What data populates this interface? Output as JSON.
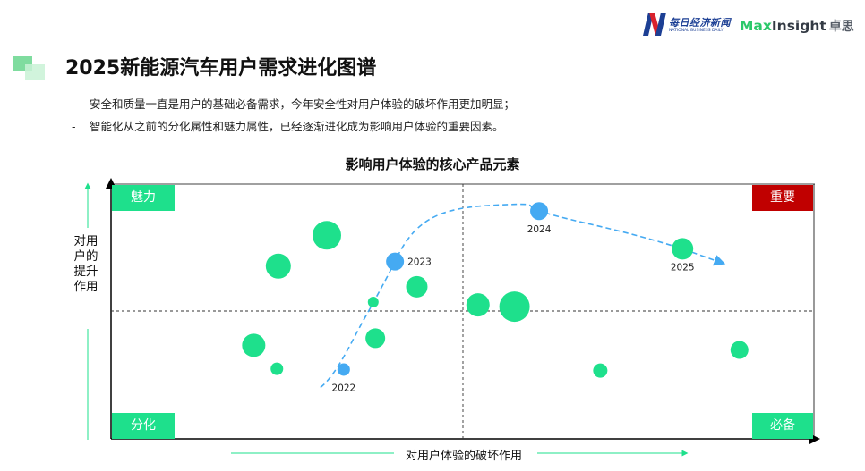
{
  "branding": {
    "nbd_cn": "每日经济新闻",
    "nbd_en": "NATIONAL BUSINESS DAILY",
    "maxinsight_max": "Max",
    "maxinsight_insight": "Insight",
    "maxinsight_cn": "卓思"
  },
  "page": {
    "title": "2025新能源汽车用户需求进化图谱",
    "bullets": [
      {
        "dash": "-",
        "text": "安全和质量一直是用户的基础必备需求，今年安全性对用户体验的破坏作用更加明显；"
      },
      {
        "dash": "-",
        "text": "智能化从之前的分化属性和魅力属性，已经逐渐进化成为影响用户体验的重要因素。"
      }
    ]
  },
  "colors": {
    "green": "#1ee08c",
    "blue": "#45aaf2",
    "important": "#c00000",
    "quadrant_green": "#1ee08c",
    "axis": "#000000"
  },
  "chart_data": {
    "type": "scatter",
    "title": "影响用户体验的核心产品元素",
    "xlabel": "对用户体验的破坏作用",
    "ylabel": "对用户的提升作用",
    "xlim": [
      0,
      100
    ],
    "ylim": [
      0,
      100
    ],
    "grid": false,
    "quadrant_labels": {
      "top_left": "魅力",
      "top_right": "重要",
      "bottom_left": "分化",
      "bottom_right": "必备"
    },
    "elements": [
      {
        "x": 30.7,
        "y": 79.9,
        "size": 16
      },
      {
        "x": 23.8,
        "y": 67.8,
        "size": 14
      },
      {
        "x": 43.5,
        "y": 59.7,
        "size": 12
      },
      {
        "x": 37.3,
        "y": 53.7,
        "size": 6
      },
      {
        "x": 57.4,
        "y": 51.9,
        "size": 17
      },
      {
        "x": 52.2,
        "y": 52.6,
        "size": 13
      },
      {
        "x": 20.3,
        "y": 36.7,
        "size": 13
      },
      {
        "x": 37.6,
        "y": 39.5,
        "size": 11
      },
      {
        "x": 23.6,
        "y": 27.5,
        "size": 7
      },
      {
        "x": 69.6,
        "y": 26.8,
        "size": 8
      },
      {
        "x": 89.4,
        "y": 34.9,
        "size": 10
      },
      {
        "x": 81.3,
        "y": 74.6,
        "size": 12
      }
    ],
    "trajectory": [
      {
        "year": "2022",
        "x": 33.1,
        "y": 27.2
      },
      {
        "year": "2023",
        "x": 40.4,
        "y": 69.6
      },
      {
        "year": "2024",
        "x": 60.9,
        "y": 89.4
      },
      {
        "year": "2025",
        "x": 81.3,
        "y": 74.6
      }
    ]
  }
}
